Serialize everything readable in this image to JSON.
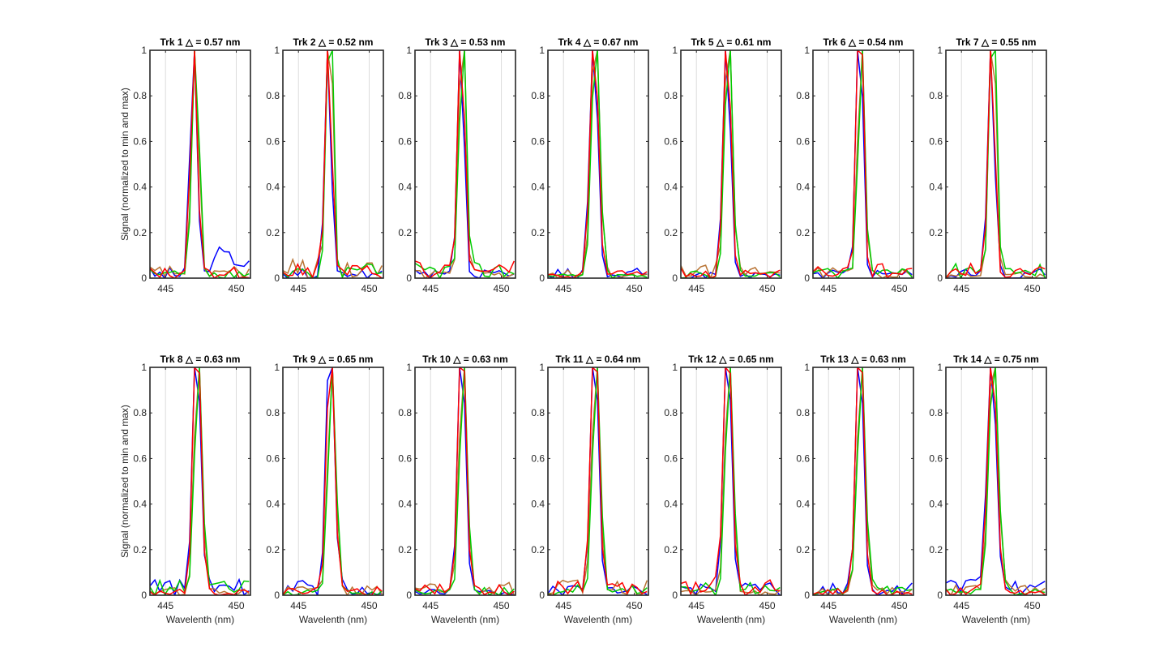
{
  "chart_data": {
    "type": "line",
    "panels": [
      {
        "title": "Trk 1 △ = 0.57 nm",
        "peak": 47.05,
        "fwhm": 0.57,
        "pattern": 0
      },
      {
        "title": "Trk 2 △ = 0.52 nm",
        "peak": 47.15,
        "fwhm": 0.52,
        "pattern": 1
      },
      {
        "title": "Trk 3 △ = 0.53 nm",
        "peak": 47.2,
        "fwhm": 0.53,
        "pattern": 2
      },
      {
        "title": "Trk 4 △ = 0.67 nm",
        "peak": 47.2,
        "fwhm": 0.67,
        "pattern": 3
      },
      {
        "title": "Trk 5 △ = 0.61 nm",
        "peak": 47.2,
        "fwhm": 0.61,
        "pattern": 4
      },
      {
        "title": "Trk 6 △ = 0.54 nm",
        "peak": 47.25,
        "fwhm": 0.54,
        "pattern": 5
      },
      {
        "title": "Trk 7 △ = 0.55 nm",
        "peak": 47.15,
        "fwhm": 0.55,
        "pattern": 6
      },
      {
        "title": "Trk 8 △ = 0.63 nm",
        "peak": 47.25,
        "fwhm": 0.63,
        "pattern": 7
      },
      {
        "title": "Trk 9 △ = 0.65 nm",
        "peak": 47.3,
        "fwhm": 0.65,
        "pattern": 8
      },
      {
        "title": "Trk 10 △ = 0.63 nm",
        "peak": 47.25,
        "fwhm": 0.63,
        "pattern": 9
      },
      {
        "title": "Trk 11 △ = 0.64 nm",
        "peak": 47.25,
        "fwhm": 0.64,
        "pattern": 10
      },
      {
        "title": "Trk 12 △ = 0.65 nm",
        "peak": 47.25,
        "fwhm": 0.65,
        "pattern": 11
      },
      {
        "title": "Trk 13 △ = 0.63 nm",
        "peak": 47.25,
        "fwhm": 0.63,
        "pattern": 12
      },
      {
        "title": "Trk 14 △ = 0.75 nm",
        "peak": 47.2,
        "fwhm": 0.75,
        "pattern": 13
      }
    ],
    "series_colors": [
      "#0000ff",
      "#00cc00",
      "#ff0000",
      "#b87333"
    ],
    "xlabel": "Wavelenth (nm)",
    "ylabel": "Signal (normalized to min and max)",
    "xlim": [
      443.9,
      451.0
    ],
    "ylim": [
      0,
      1
    ],
    "xticks": [
      445,
      450
    ],
    "yticks": [
      0,
      0.2,
      0.4,
      0.6,
      0.8,
      1
    ],
    "ytick_labels": [
      "0",
      "0.2",
      "0.4",
      "0.6",
      "0.8",
      "1"
    ],
    "grid": true,
    "layout": "2 rows x 7 columns"
  }
}
